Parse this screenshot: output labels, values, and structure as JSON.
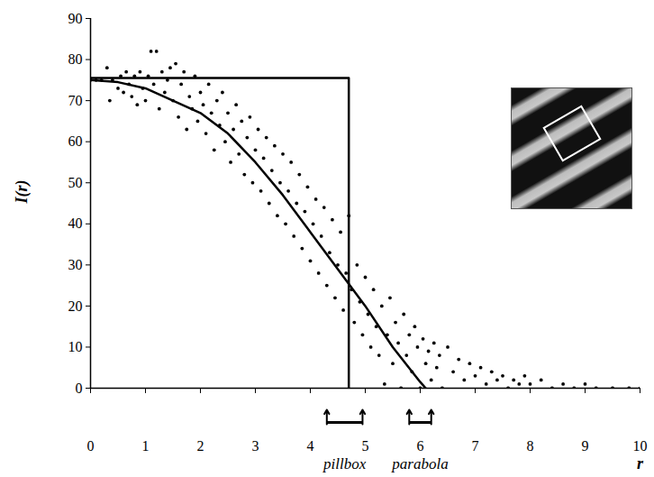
{
  "chart_data": {
    "type": "scatter",
    "x_label": "r",
    "y_label": "I(r)",
    "xlim": [
      0,
      10
    ],
    "ylim": [
      0,
      90
    ],
    "xticks": [
      0,
      1,
      2,
      3,
      4,
      5,
      6,
      7,
      8,
      9,
      10
    ],
    "yticks": [
      0,
      10,
      20,
      30,
      40,
      50,
      60,
      70,
      80,
      90
    ],
    "grid": false,
    "series": [
      {
        "type": "scatter",
        "marker": "circle",
        "color": "#000000",
        "x": [
          0,
          0.1,
          0.2,
          0.3,
          0.35,
          0.4,
          0.5,
          0.55,
          0.6,
          0.65,
          0.7,
          0.75,
          0.8,
          0.85,
          0.9,
          0.95,
          1.0,
          1.05,
          1.1,
          1.15,
          1.2,
          1.25,
          1.3,
          1.35,
          1.4,
          1.45,
          1.5,
          1.55,
          1.6,
          1.65,
          1.7,
          1.75,
          1.8,
          1.85,
          1.9,
          1.95,
          2.0,
          2.05,
          2.1,
          2.15,
          2.2,
          2.25,
          2.3,
          2.35,
          2.4,
          2.45,
          2.5,
          2.55,
          2.6,
          2.65,
          2.7,
          2.75,
          2.8,
          2.85,
          2.9,
          2.95,
          3.0,
          3.05,
          3.1,
          3.15,
          3.2,
          3.25,
          3.3,
          3.35,
          3.4,
          3.45,
          3.5,
          3.55,
          3.6,
          3.65,
          3.7,
          3.75,
          3.8,
          3.85,
          3.9,
          3.95,
          4.0,
          4.05,
          4.1,
          4.15,
          4.2,
          4.25,
          4.3,
          4.35,
          4.4,
          4.45,
          4.5,
          4.55,
          4.6,
          4.65,
          4.7,
          4.75,
          4.8,
          4.85,
          4.9,
          4.95,
          5.0,
          5.05,
          5.1,
          5.15,
          5.2,
          5.25,
          5.3,
          5.35,
          5.4,
          5.45,
          5.5,
          5.55,
          5.6,
          5.65,
          5.7,
          5.75,
          5.8,
          5.85,
          5.9,
          5.95,
          6.0,
          6.05,
          6.1,
          6.15,
          6.2,
          6.25,
          6.3,
          6.35,
          6.4,
          6.5,
          6.6,
          6.7,
          6.8,
          6.9,
          7.0,
          7.1,
          7.2,
          7.3,
          7.4,
          7.5,
          7.6,
          7.7,
          7.8,
          7.9,
          8.0,
          8.2,
          8.4,
          8.6,
          8.8,
          9.0,
          9.2,
          9.5,
          9.8,
          10.0
        ],
        "values": [
          75,
          75,
          75,
          78,
          70,
          75,
          73,
          76,
          72,
          77,
          74,
          71,
          76,
          69,
          77,
          73,
          70,
          76,
          82,
          74,
          82,
          68,
          77,
          72,
          75,
          78,
          70,
          79,
          66,
          74,
          77,
          63,
          71,
          68,
          76,
          65,
          72,
          69,
          62,
          74,
          67,
          58,
          70,
          64,
          72,
          60,
          67,
          55,
          63,
          69,
          57,
          65,
          52,
          61,
          66,
          50,
          58,
          63,
          48,
          56,
          61,
          45,
          53,
          59,
          42,
          50,
          57,
          40,
          48,
          55,
          37,
          45,
          52,
          34,
          43,
          49,
          31,
          40,
          46,
          28,
          37,
          44,
          25,
          33,
          41,
          22,
          30,
          38,
          19,
          28,
          42,
          24,
          16,
          30,
          21,
          13,
          27,
          18,
          10,
          24,
          15,
          8,
          20,
          1,
          13,
          22,
          6,
          16,
          11,
          0,
          18,
          8,
          13,
          4,
          15,
          10,
          0,
          12,
          6,
          9,
          2,
          11,
          5,
          8,
          0,
          10,
          4,
          7,
          2,
          6,
          3,
          5,
          1,
          4,
          2,
          3,
          0,
          2,
          1,
          3,
          1,
          2,
          0,
          1,
          0,
          1,
          0,
          0,
          0,
          0
        ]
      },
      {
        "type": "line",
        "line_style": "solid",
        "color": "#000000",
        "x": [
          0,
          4.7,
          4.7
        ],
        "values": [
          75.5,
          75.5,
          0
        ]
      },
      {
        "type": "line",
        "line_style": "solid",
        "color": "#000000",
        "x": [
          0,
          0.5,
          1,
          1.5,
          2,
          2.5,
          3,
          3.5,
          4,
          4.5,
          5,
          5.5,
          6,
          6.1
        ],
        "values": [
          75,
          74.5,
          73,
          70,
          67,
          62,
          55,
          47,
          38,
          29,
          20,
          10,
          1.5,
          0
        ]
      }
    ],
    "annotations": [
      {
        "text": "pillbox",
        "range": [
          4.3,
          4.95
        ]
      },
      {
        "text": "parabola",
        "range": [
          5.8,
          6.2
        ]
      }
    ]
  }
}
